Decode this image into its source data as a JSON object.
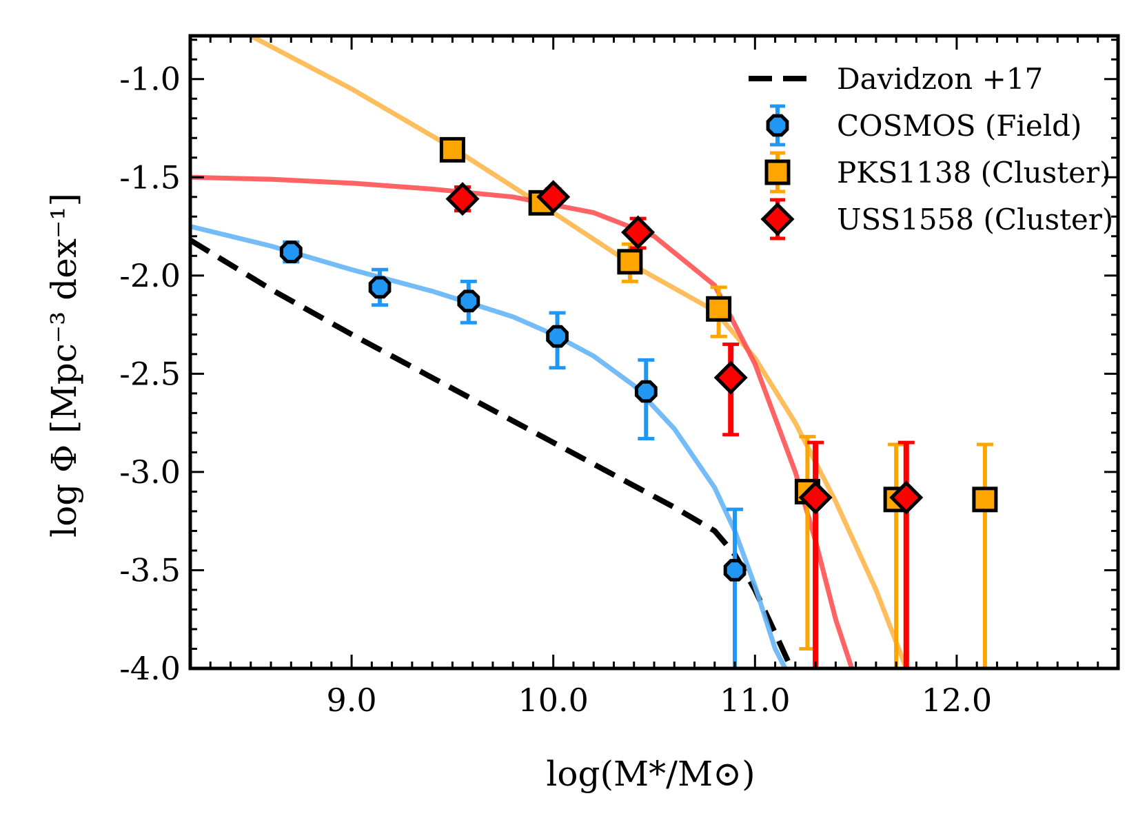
{
  "chart_data": {
    "type": "scatter",
    "xlabel": "log(M*/M⊙)",
    "ylabel": "log Φ [Mpc⁻³ dex⁻¹]",
    "xlim": [
      8.2,
      12.8
    ],
    "ylim": [
      -4.0,
      -0.78
    ],
    "x_ticks": [
      9.0,
      10.0,
      11.0,
      12.0
    ],
    "x_tick_labels": [
      "9.0",
      "10.0",
      "11.0",
      "12.0"
    ],
    "y_ticks": [
      -1.0,
      -1.5,
      -2.0,
      -2.5,
      -3.0,
      -3.5,
      -4.0
    ],
    "y_tick_labels": [
      "-1.0",
      "-1.5",
      "-2.0",
      "-2.5",
      "-3.0",
      "-3.5",
      "-4.0"
    ],
    "grid": false,
    "legend_position": "top-right",
    "legend": [
      {
        "label": "Davidzon +17",
        "kind": "dashed-line",
        "color": "#000000"
      },
      {
        "label": "COSMOS (Field)",
        "kind": "circle",
        "color": "#2196f3"
      },
      {
        "label": "PKS1138 (Cluster)",
        "kind": "square",
        "color": "#ffa500"
      },
      {
        "label": "USS1558 (Cluster)",
        "kind": "diamond",
        "color": "#ff0000"
      }
    ],
    "lines": [
      {
        "name": "Davidzon +17",
        "color": "#000000",
        "style": "dashed",
        "x": [
          8.2,
          8.6,
          9.0,
          9.4,
          9.8,
          10.2,
          10.6,
          10.8,
          10.9,
          11.0,
          11.1,
          11.18
        ],
        "y": [
          -1.82,
          -2.07,
          -2.3,
          -2.52,
          -2.74,
          -2.96,
          -3.18,
          -3.3,
          -3.42,
          -3.6,
          -3.82,
          -4.0
        ]
      },
      {
        "name": "COSMOS fit",
        "color": "#64b5f6",
        "style": "solid",
        "x": [
          8.2,
          8.6,
          9.0,
          9.4,
          9.8,
          10.0,
          10.2,
          10.4,
          10.6,
          10.8,
          10.9,
          11.0,
          11.1,
          11.15
        ],
        "y": [
          -1.75,
          -1.85,
          -1.97,
          -2.08,
          -2.21,
          -2.3,
          -2.41,
          -2.56,
          -2.78,
          -3.08,
          -3.3,
          -3.58,
          -3.9,
          -4.0
        ]
      },
      {
        "name": "PKS1138 fit",
        "color": "#ffb74d",
        "style": "solid",
        "x": [
          8.5,
          9.0,
          9.5,
          10.0,
          10.4,
          10.8,
          11.0,
          11.2,
          11.4,
          11.6,
          11.75
        ],
        "y": [
          -0.78,
          -1.05,
          -1.35,
          -1.68,
          -1.95,
          -2.18,
          -2.42,
          -2.75,
          -3.15,
          -3.6,
          -4.0
        ]
      },
      {
        "name": "USS1558 fit",
        "color": "#ff5252",
        "style": "solid",
        "x": [
          8.2,
          8.6,
          9.0,
          9.4,
          9.8,
          10.2,
          10.5,
          10.8,
          11.0,
          11.2,
          11.3,
          11.4,
          11.48
        ],
        "y": [
          -1.5,
          -1.51,
          -1.53,
          -1.56,
          -1.6,
          -1.68,
          -1.8,
          -2.05,
          -2.45,
          -3.0,
          -3.35,
          -3.75,
          -4.0
        ]
      }
    ],
    "series": [
      {
        "name": "COSMOS (Field)",
        "marker": "circle",
        "color": "#2196f3",
        "x": [
          8.7,
          9.14,
          9.58,
          10.02,
          10.46,
          10.9
        ],
        "y": [
          -1.88,
          -2.06,
          -2.13,
          -2.31,
          -2.59,
          -3.5
        ],
        "err_lo": [
          0.05,
          0.09,
          0.11,
          0.16,
          0.24,
          0.5
        ],
        "err_hi": [
          0.05,
          0.09,
          0.1,
          0.12,
          0.16,
          0.31
        ]
      },
      {
        "name": "PKS1138 (Cluster)",
        "marker": "square",
        "color": "#ffa500",
        "x": [
          9.5,
          9.94,
          10.38,
          10.82,
          11.26,
          11.7,
          12.14
        ],
        "y": [
          -1.36,
          -1.63,
          -1.93,
          -2.17,
          -3.1,
          -3.14,
          -3.14
        ],
        "err_lo": [
          0.02,
          0.03,
          0.1,
          0.14,
          0.8,
          0.86,
          0.86
        ],
        "err_hi": [
          0.02,
          0.03,
          0.09,
          0.11,
          0.28,
          0.28,
          0.28
        ]
      },
      {
        "name": "USS1558 (Cluster)",
        "marker": "diamond",
        "color": "#ff0000",
        "x": [
          9.55,
          10.0,
          10.42,
          10.88,
          11.3,
          11.75
        ],
        "y": [
          -1.61,
          -1.6,
          -1.78,
          -2.52,
          -3.13,
          -3.13
        ],
        "err_lo": [
          0.06,
          0.04,
          0.08,
          0.29,
          0.87,
          0.87
        ],
        "err_hi": [
          0.06,
          0.04,
          0.07,
          0.17,
          0.28,
          0.28
        ]
      }
    ]
  }
}
